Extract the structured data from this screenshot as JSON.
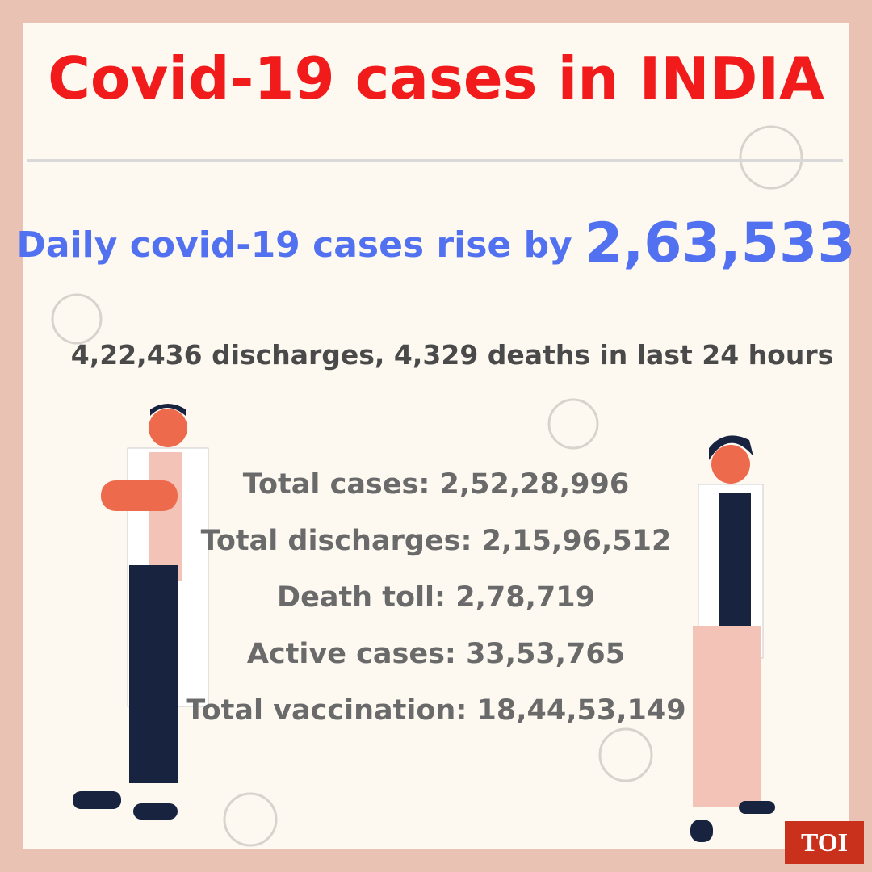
{
  "header": {
    "title": "Covid-19 cases in INDIA"
  },
  "headline": {
    "text": "Daily covid-19 cases rise by",
    "highlight": "2,63,533"
  },
  "subline": "4,22,436 discharges, 4,329 deaths in last 24 hours",
  "stats": [
    "Total cases: 2,52,28,996",
    "Total discharges: 2,15,96,512",
    "Death toll: 2,78,719",
    "Active cases: 33,53,765",
    "Total vaccination: 18,44,53,149"
  ],
  "logo": "TOI"
}
